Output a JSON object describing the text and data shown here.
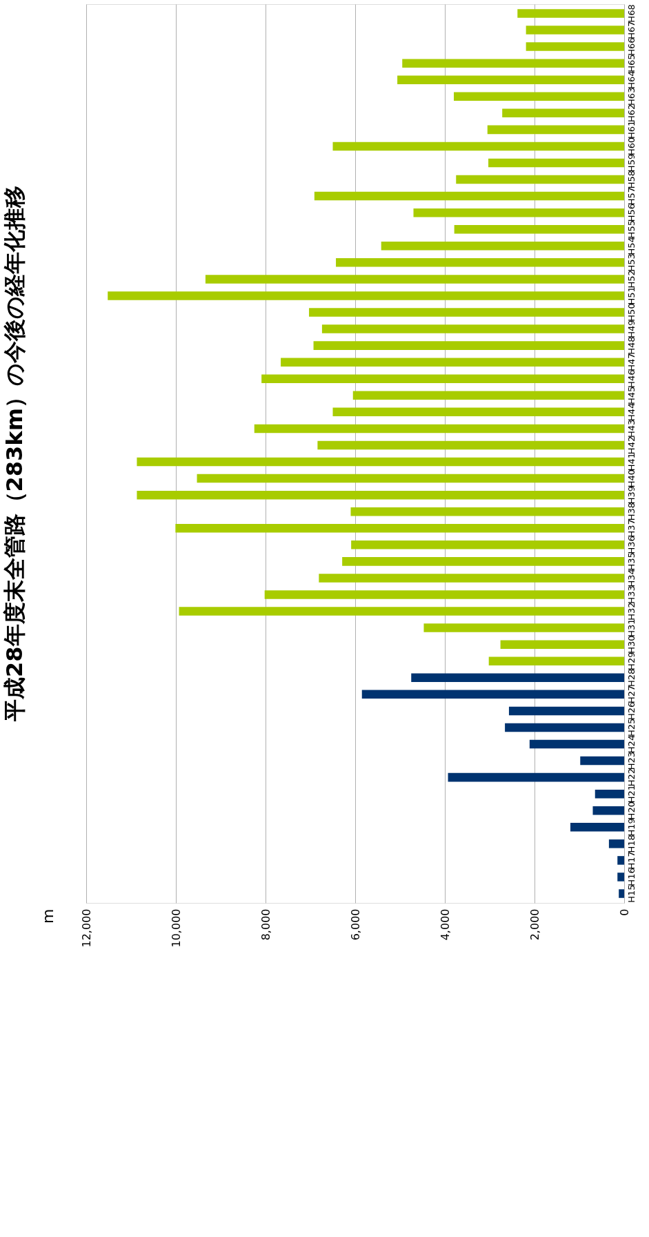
{
  "chart_data": {
    "type": "bar",
    "orientation": "horizontal",
    "title": "平成28年度末全管路（283km）の今後の経年化推移",
    "annotations": [
      "m"
    ],
    "categories": [
      "H68",
      "H67",
      "H66",
      "H65",
      "H64",
      "H63",
      "H62",
      "H61",
      "H60",
      "H59",
      "H58",
      "H57",
      "H56",
      "H55",
      "H54",
      "H53",
      "H52",
      "H51",
      "H50",
      "H49",
      "H48",
      "H47",
      "H46",
      "H45",
      "H44",
      "H43",
      "H42",
      "H41",
      "H40",
      "H39",
      "H38",
      "H37",
      "H36",
      "H35",
      "H34",
      "H33",
      "H32",
      "H31",
      "H30",
      "H29",
      "H28",
      "H27",
      "H26",
      "H25",
      "H24",
      "H23",
      "H22",
      "H21",
      "H20",
      "H19",
      "H18",
      "H17",
      "H16",
      "H15"
    ],
    "values": [
      2380,
      2190,
      2190,
      4950,
      5060,
      3800,
      2720,
      3050,
      6500,
      3030,
      3750,
      6910,
      4700,
      3790,
      5420,
      6430,
      9340,
      11520,
      7030,
      6740,
      6930,
      7660,
      8090,
      6050,
      6500,
      8250,
      6840,
      10870,
      9530,
      10870,
      6100,
      10010,
      6090,
      6290,
      6810,
      8020,
      9930,
      4470,
      2760,
      3020,
      4750,
      5850,
      2570,
      2660,
      2110,
      980,
      3930,
      650,
      700,
      1200,
      340,
      150,
      150,
      120
    ],
    "colors": [
      "#a8cc00",
      "#a8cc00",
      "#a8cc00",
      "#a8cc00",
      "#a8cc00",
      "#a8cc00",
      "#a8cc00",
      "#a8cc00",
      "#a8cc00",
      "#a8cc00",
      "#a8cc00",
      "#a8cc00",
      "#a8cc00",
      "#a8cc00",
      "#a8cc00",
      "#a8cc00",
      "#a8cc00",
      "#a8cc00",
      "#a8cc00",
      "#a8cc00",
      "#a8cc00",
      "#a8cc00",
      "#a8cc00",
      "#a8cc00",
      "#a8cc00",
      "#a8cc00",
      "#a8cc00",
      "#a8cc00",
      "#a8cc00",
      "#a8cc00",
      "#a8cc00",
      "#a8cc00",
      "#a8cc00",
      "#a8cc00",
      "#a8cc00",
      "#a8cc00",
      "#a8cc00",
      "#a8cc00",
      "#a8cc00",
      "#a8cc00",
      "#003370",
      "#003370",
      "#003370",
      "#003370",
      "#003370",
      "#003370",
      "#003370",
      "#003370",
      "#003370",
      "#003370",
      "#003370",
      "#003370",
      "#003370",
      "#003370"
    ],
    "xlim": [
      12000,
      0
    ],
    "xticks": [
      0,
      {
        "value": 2000,
        "label": "2,000"
      },
      {
        "value": 4000,
        "label": "4,000"
      },
      {
        "value": 6000,
        "label": "6,000"
      },
      {
        "value": 8000,
        "label": "8,000"
      },
      {
        "value": 10000,
        "label": "10,000"
      },
      {
        "value": 12000,
        "label": "12,000"
      }
    ],
    "grid": "x",
    "legend": false
  }
}
